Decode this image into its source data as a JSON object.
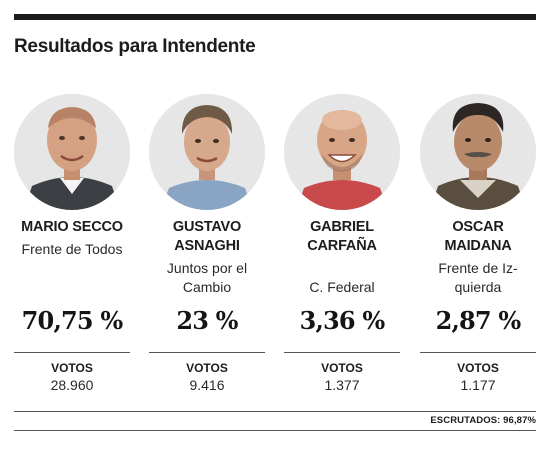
{
  "header": {
    "title": "Resultados para Intendente"
  },
  "candidates": [
    {
      "name": "MARIO SECCO",
      "party": "Frente de Todos",
      "percentage": "70,75 %",
      "votes_label": "VOTOS",
      "votes": "28.960"
    },
    {
      "name": "GUSTAVO\nASNAGHI",
      "party": "Juntos por el\nCambio",
      "percentage": "23 %",
      "votes_label": "VOTOS",
      "votes": "9.416"
    },
    {
      "name": "GABRIEL\nCARFAÑA",
      "party": "C. Federal",
      "percentage": "3,36 %",
      "votes_label": "VOTOS",
      "votes": "1.377"
    },
    {
      "name": "OSCAR\nMAIDANA",
      "party": "Frente de Iz-\nquierda",
      "percentage": "2,87 %",
      "votes_label": "VOTOS",
      "votes": "1.177"
    }
  ],
  "footer": {
    "escrutados": "ESCRUTADOS: 96,87%"
  }
}
